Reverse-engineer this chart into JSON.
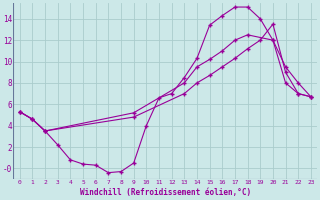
{
  "xlabel": "Windchill (Refroidissement éolien,°C)",
  "bg_color": "#cce8e8",
  "line_color": "#990099",
  "grid_color": "#aacccc",
  "xlim": [
    -0.5,
    23.5
  ],
  "ylim": [
    -1.0,
    15.5
  ],
  "yticks": [
    0,
    2,
    4,
    6,
    8,
    10,
    12,
    14
  ],
  "ytick_labels": [
    "-0",
    "2",
    "4",
    "6",
    "8",
    "10",
    "12",
    "14"
  ],
  "xticks": [
    0,
    1,
    2,
    3,
    4,
    5,
    6,
    7,
    8,
    9,
    10,
    11,
    12,
    13,
    14,
    15,
    16,
    17,
    18,
    19,
    20,
    21,
    22,
    23
  ],
  "line1_x": [
    0,
    1,
    2,
    3,
    4,
    5,
    6,
    7,
    8,
    9,
    10,
    11,
    12,
    13,
    14,
    15,
    16,
    17,
    18,
    19,
    20,
    21,
    22,
    23
  ],
  "line1_y": [
    5.3,
    4.6,
    3.5,
    2.2,
    0.8,
    0.4,
    0.3,
    -0.4,
    -0.3,
    0.5,
    4.0,
    6.6,
    7.0,
    8.5,
    10.3,
    13.4,
    14.3,
    15.1,
    15.1,
    14.0,
    12.0,
    8.0,
    7.0,
    6.7
  ],
  "line2_x": [
    0,
    1,
    2,
    9,
    13,
    14,
    15,
    16,
    17,
    18,
    20,
    21,
    22,
    23
  ],
  "line2_y": [
    5.3,
    4.6,
    3.5,
    5.2,
    8.0,
    9.5,
    10.2,
    11.0,
    12.0,
    12.5,
    12.0,
    9.5,
    8.0,
    6.7
  ],
  "line3_x": [
    0,
    1,
    2,
    9,
    13,
    14,
    15,
    16,
    17,
    18,
    19,
    20,
    21,
    22,
    23
  ],
  "line3_y": [
    5.3,
    4.6,
    3.5,
    4.8,
    7.0,
    8.0,
    8.7,
    9.5,
    10.3,
    11.2,
    12.0,
    13.5,
    9.0,
    7.0,
    6.7
  ]
}
